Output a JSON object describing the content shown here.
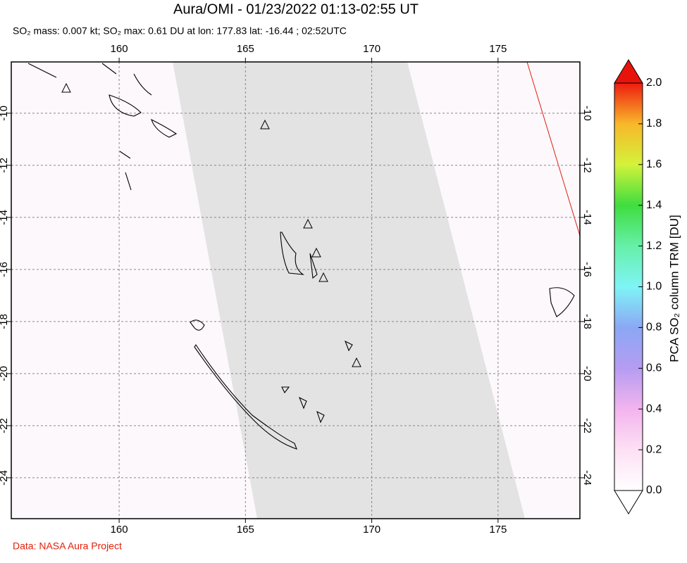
{
  "title": "Aura/OMI - 01/23/2022 01:13-02:55 UT",
  "subtitle": "SO₂ mass: 0.007 kt; SO₂ max: 0.61 DU at lon: 177.83 lat: -16.44 ; 02:52UTC",
  "map": {
    "xlim": [
      155.73,
      178.24
    ],
    "ylim": [
      -25.57,
      -8.03
    ],
    "xticks": [
      160,
      165,
      170,
      175
    ],
    "yticks": [
      -10,
      -12,
      -14,
      -16,
      -18,
      -20,
      -22,
      -24
    ]
  },
  "colorbar": {
    "label": "PCA SO₂ column TRM [DU]",
    "lim": [
      0,
      2
    ],
    "ticks": [
      {
        "value": 0,
        "label": "0.0"
      },
      {
        "value": 0.2,
        "label": "0.2"
      },
      {
        "value": 0.4,
        "label": "0.4"
      },
      {
        "value": 0.6,
        "label": "0.6"
      },
      {
        "value": 0.8,
        "label": "0.8"
      },
      {
        "value": 1,
        "label": "1.0"
      },
      {
        "value": 1.2,
        "label": "1.2"
      },
      {
        "value": 1.4,
        "label": "1.4"
      },
      {
        "value": 1.6,
        "label": "1.6"
      },
      {
        "value": 1.8,
        "label": "1.8"
      },
      {
        "value": 2,
        "label": "2.0"
      }
    ]
  },
  "footer": "Data: NASA Aura Project"
}
